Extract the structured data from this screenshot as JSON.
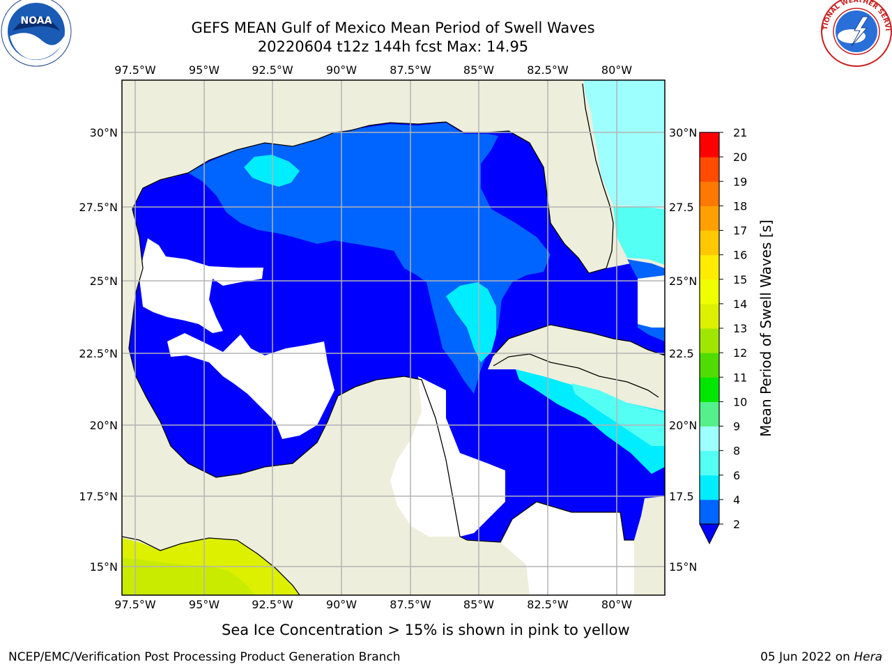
{
  "title": {
    "line1": "GEFS MEAN Gulf of Mexico Mean Period of Swell Waves",
    "line2": "20220604 t12z 144h fcst   Max: 14.95"
  },
  "map": {
    "lon_ticks": [
      "97.5°W",
      "95°W",
      "92.5°W",
      "90°W",
      "87.5°W",
      "85°W",
      "82.5°W",
      "80°W"
    ],
    "lat_ticks_left": [
      "30°N",
      "27.5°N",
      "25°N",
      "22.5°N",
      "20°N",
      "17.5°N",
      "15°N"
    ],
    "lat_ticks_right": [
      "30°N",
      "27.5",
      "25°N",
      "22.5",
      "20°N",
      "17.5",
      "15°N"
    ],
    "land_color": "#eeeedc",
    "grid_color": "#b4b4b4"
  },
  "colorbar": {
    "label": "Mean Period of Swell Waves [s]",
    "ticks": [
      "2",
      "4",
      "6",
      "8",
      "9",
      "10",
      "11",
      "12",
      "13",
      "14",
      "15",
      "16",
      "17",
      "18",
      "19",
      "20",
      "21"
    ],
    "colors": [
      "#0064ff",
      "#00ecff",
      "#54fff4",
      "#9effff",
      "#54f08c",
      "#00e600",
      "#50dc00",
      "#a0e600",
      "#dcf000",
      "#f0ff00",
      "#ffec00",
      "#ffc800",
      "#ffa000",
      "#ff7800",
      "#ff4c00",
      "#ff0000"
    ],
    "extend_color": "#0000ff"
  },
  "logos": {
    "left": "NOAA",
    "right": "NATIONAL WEATHER SERVICE"
  },
  "footer": {
    "caption": "Sea Ice Concentration > 15% is shown in pink to yellow",
    "left": "NCEP/EMC/Verification Post Processing Product Generation Branch",
    "right_date": "05 Jun 2022 on ",
    "right_machine": "Hera"
  }
}
